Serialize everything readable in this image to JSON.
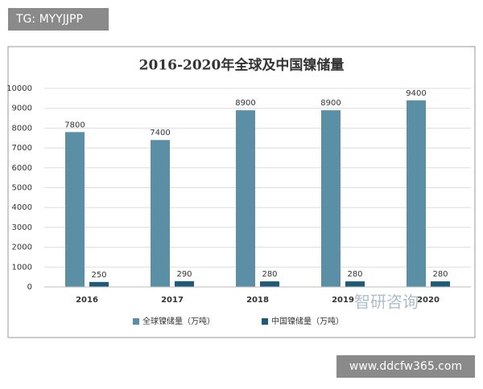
{
  "tag": "TG: MYYJJPP",
  "watermark": "智研咨询",
  "footer_url": "www.ddcfw365.com",
  "chart_data": {
    "type": "bar",
    "title": "2016-2020年全球及中国镍储量",
    "categories": [
      "2016",
      "2017",
      "2018",
      "2019",
      "2020"
    ],
    "series": [
      {
        "name": "全球镍储量（万吨）",
        "color": "#5b8fa6",
        "values": [
          7800,
          7400,
          8900,
          8900,
          9400
        ]
      },
      {
        "name": "中国镍储量（万吨）",
        "color": "#1f5a78",
        "values": [
          250,
          290,
          280,
          280,
          280
        ]
      }
    ],
    "ylim": [
      0,
      10000
    ],
    "yticks": [
      0,
      1000,
      2000,
      3000,
      4000,
      5000,
      6000,
      7000,
      8000,
      9000,
      10000
    ],
    "grid": true,
    "legend": "bottom"
  }
}
